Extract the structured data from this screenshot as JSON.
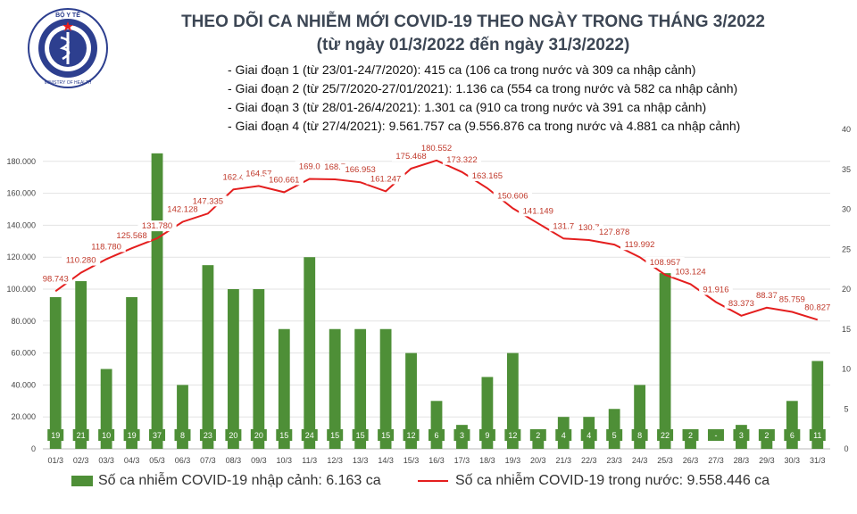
{
  "header": {
    "title_line1": "THEO DÕI CA NHIỄM MỚI COVID-19 THEO NGÀY TRONG THÁNG 3/2022",
    "title_line2": "(từ ngày 01/3/2022 đến ngày 31/3/2022)",
    "logo_top_text": "BỘ Y TẾ",
    "logo_bottom_text": "MINISTRY OF HEALTH",
    "notes": [
      "- Giai đoạn 1 (từ 23/01-24/7/2020): 415 ca (106 ca trong nước và 309 ca nhập cảnh)",
      "- Giai đoạn 2 (từ 25/7/2020-27/01/2021): 1.136 ca (554 ca trong nước và 582 ca nhập cảnh)",
      "- Giai đoạn 3 (từ 28/01-26/4/2021): 1.301 ca (910 ca trong nước và 391 ca nhập cảnh)",
      "- Giai đoạn 4 (từ 27/4/2021): 9.561.757 ca (9.556.876 ca trong nước và 4.881 ca nhập cảnh)"
    ]
  },
  "colors": {
    "bar": "#4e8f37",
    "line": "#e41e1e",
    "bar_label_bg": "#4e8f37",
    "grid": "#e3e3e3",
    "title": "#3c4654"
  },
  "chart_data": {
    "type": "bar",
    "categories": [
      "01/3",
      "02/3",
      "03/3",
      "04/3",
      "05/3",
      "06/3",
      "07/3",
      "08/3",
      "09/3",
      "10/3",
      "11/3",
      "12/3",
      "13/3",
      "14/3",
      "15/3",
      "16/3",
      "17/3",
      "18/3",
      "19/3",
      "20/3",
      "21/3",
      "22/3",
      "23/3",
      "24/3",
      "25/3",
      "26/3",
      "27/3",
      "28/3",
      "29/3",
      "30/3",
      "31/3"
    ],
    "series": [
      {
        "name": "Số ca nhiễm COVID-19 nhập cảnh: 6.163 ca",
        "type": "bar",
        "axis": "right",
        "values": [
          19,
          21,
          10,
          19,
          37,
          8,
          23,
          20,
          20,
          15,
          24,
          15,
          15,
          15,
          12,
          6,
          3,
          9,
          12,
          2,
          4,
          4,
          5,
          8,
          22,
          2,
          0,
          3,
          2,
          6,
          11
        ],
        "labels": [
          "19",
          "21",
          "10",
          "19",
          "37",
          "8",
          "23",
          "20",
          "20",
          "15",
          "24",
          "15",
          "15",
          "15",
          "12",
          "6",
          "3",
          "9",
          "12",
          "2",
          "4",
          "4",
          "5",
          "8",
          "22",
          "2",
          "-",
          "3",
          "2",
          "6",
          "11"
        ]
      },
      {
        "name": "Số ca nhiễm COVID-19 trong nước: 9.558.446 ca",
        "type": "line",
        "axis": "left",
        "values": [
          98743,
          110280,
          118780,
          125568,
          131780,
          142128,
          147335,
          162400,
          164570,
          160661,
          169000,
          168700,
          166953,
          161247,
          175468,
          180552,
          173322,
          163165,
          150606,
          141149,
          131700,
          130700,
          127878,
          119992,
          108957,
          103124,
          91916,
          83373,
          88370,
          85759,
          80827
        ],
        "labels": [
          "98.743",
          "110.280",
          "118.780",
          "125.568",
          "131.780",
          "142.128",
          "147.335",
          "162.4",
          "164.57",
          "160.661",
          "169.0",
          "168.7",
          "166.953",
          "161.247",
          "175.468",
          "180.552",
          "173.322",
          "163.165",
          "150.606",
          "141.149",
          "131.7",
          "130.7",
          "127.878",
          "119.992",
          "108.957",
          "103.124",
          "91.916",
          "83.373",
          "88.37",
          "85.759",
          "80.827"
        ]
      }
    ],
    "y_left": {
      "min": 0,
      "max": 200000,
      "ticks": [
        0,
        20000,
        40000,
        60000,
        80000,
        100000,
        120000,
        140000,
        160000,
        180000
      ],
      "tick_labels": [
        "0",
        "20.000",
        "40.000",
        "60.000",
        "80.000",
        "100.000",
        "120.000",
        "140.000",
        "160.000",
        "180.000"
      ]
    },
    "y_right": {
      "min": 0,
      "max": 40,
      "ticks": [
        0,
        5,
        10,
        15,
        20,
        25,
        30,
        35,
        40
      ],
      "tick_labels": [
        "0",
        "5",
        "10",
        "15",
        "20",
        "25",
        "30",
        "35",
        "40"
      ]
    },
    "grid": true,
    "legend": "bottom"
  }
}
